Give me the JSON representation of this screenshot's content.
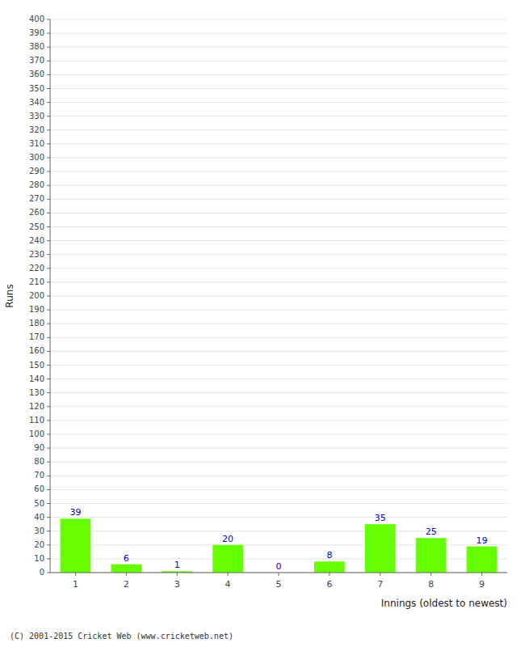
{
  "chart_data": {
    "type": "bar",
    "categories": [
      "1",
      "2",
      "3",
      "4",
      "5",
      "6",
      "7",
      "8",
      "9"
    ],
    "values": [
      39,
      6,
      1,
      20,
      0,
      8,
      35,
      25,
      19
    ],
    "color": "#66ff00",
    "xlabel": "Innings (oldest to newest)",
    "ylabel": "Runs",
    "ylim": [
      0,
      400
    ],
    "yticks": [
      0,
      10,
      20,
      30,
      40,
      50,
      60,
      70,
      80,
      90,
      100,
      110,
      120,
      130,
      140,
      150,
      160,
      170,
      180,
      190,
      200,
      210,
      220,
      230,
      240,
      250,
      260,
      270,
      280,
      290,
      300,
      310,
      320,
      330,
      340,
      350,
      360,
      370,
      380,
      390,
      400
    ],
    "grid": true,
    "data_labels": true,
    "annotations": [
      "(C) 2001-2015 Cricket Web (www.cricketweb.net)"
    ]
  }
}
